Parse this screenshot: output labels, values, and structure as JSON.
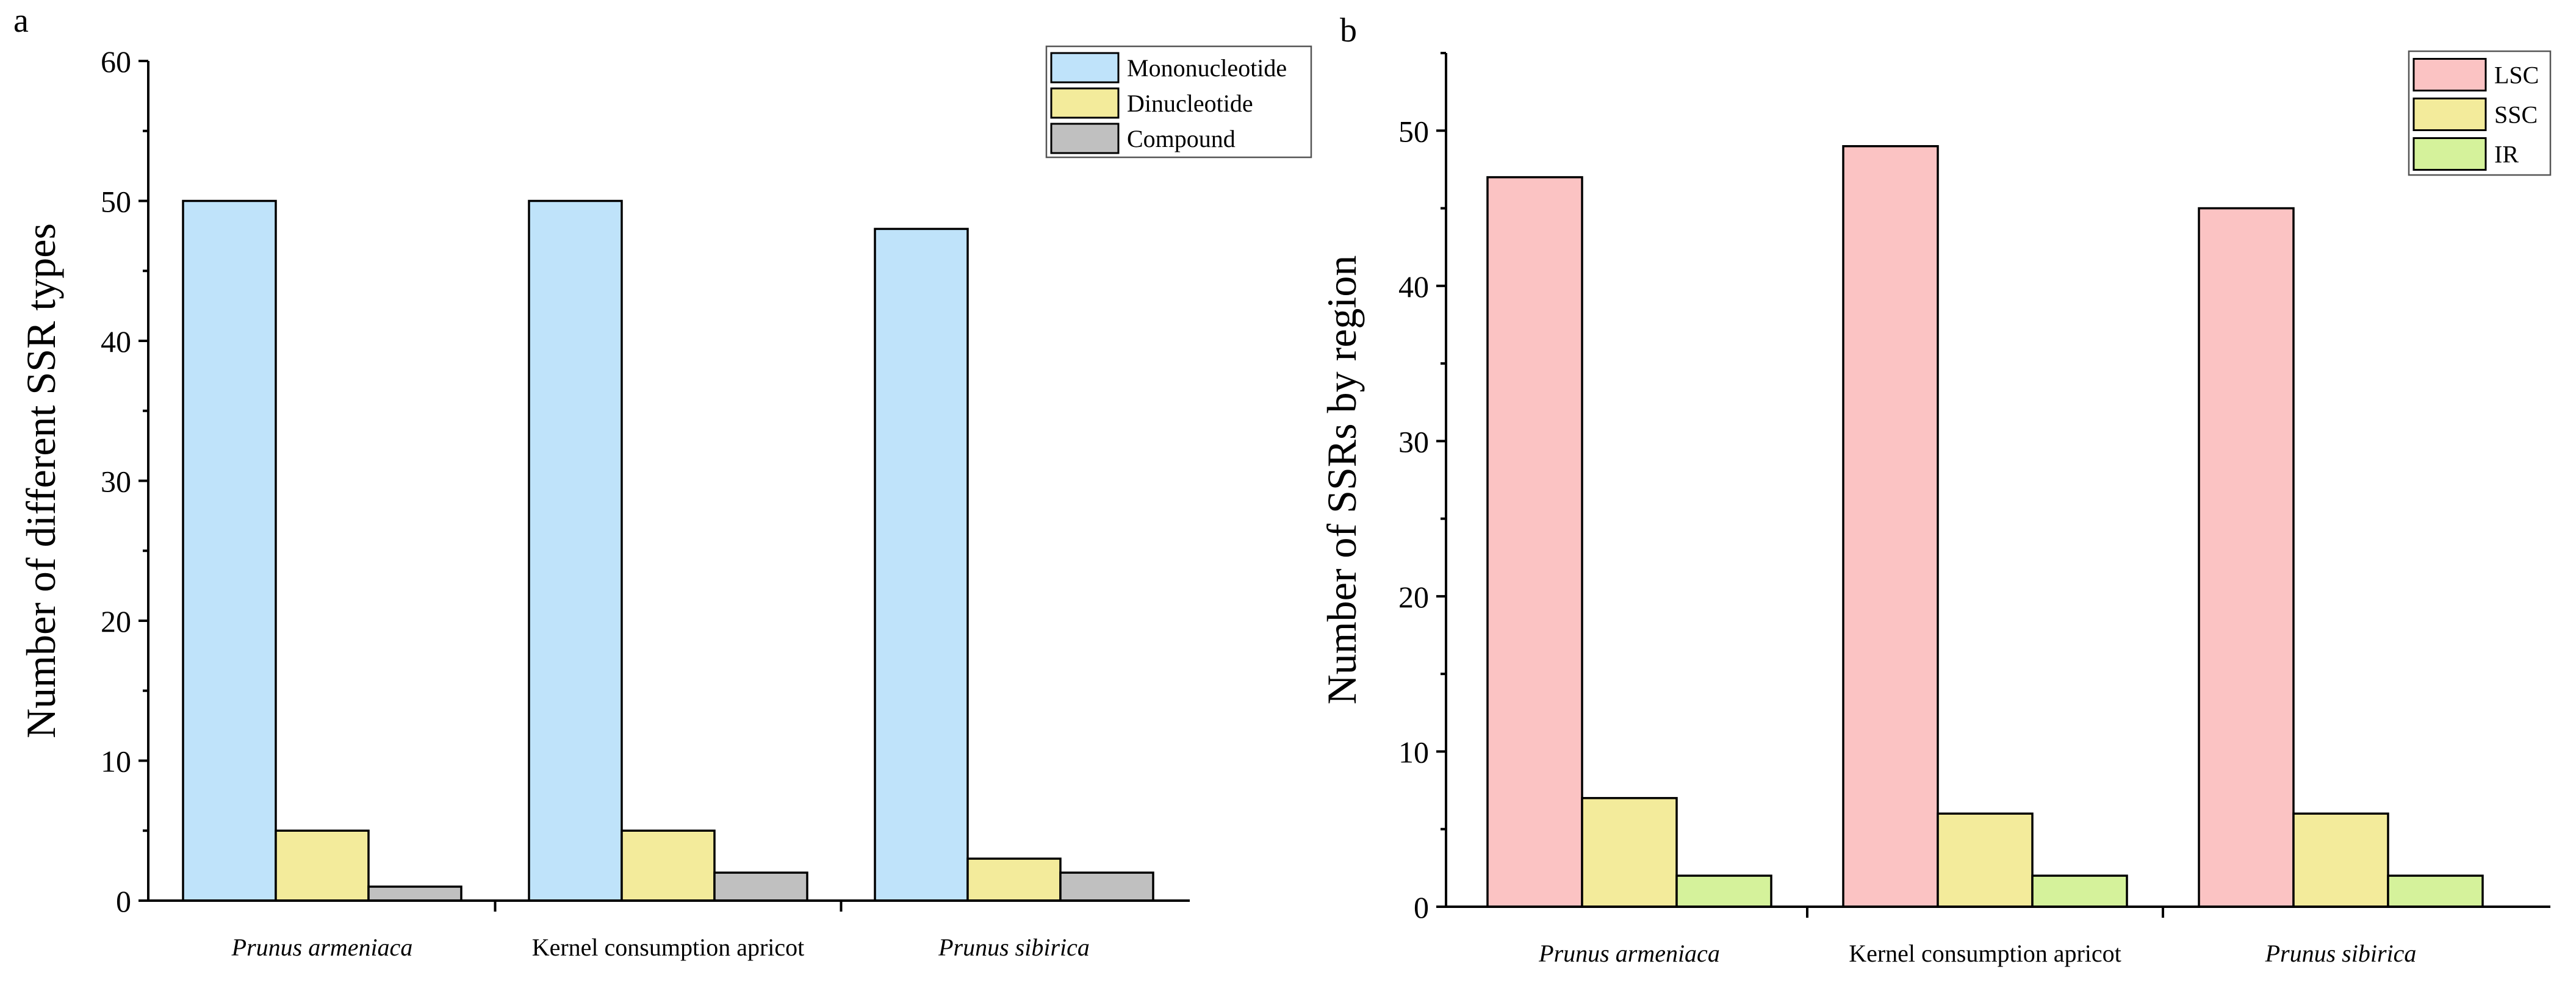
{
  "chart_data": [
    {
      "type": "bar",
      "panel_label": "a",
      "categories": [
        "Prunus armeniaca",
        "Kernel consumption apricot",
        "Prunus sibirica"
      ],
      "category_italic": [
        true,
        false,
        true
      ],
      "series": [
        {
          "name": "Mononucleotide",
          "color": "#bfe3fa",
          "values": [
            50,
            50,
            48
          ]
        },
        {
          "name": "Dinucleotide",
          "color": "#f3eb9b",
          "values": [
            5,
            5,
            3
          ]
        },
        {
          "name": "Compound",
          "color": "#c0c0c0",
          "values": [
            1,
            2,
            2
          ]
        }
      ],
      "ylabel": "Number of different SSR types",
      "xlabel": "",
      "ylim": [
        0,
        60
      ],
      "yticks": [
        0,
        10,
        20,
        30,
        40,
        50,
        60
      ],
      "legend_position": "top-right"
    },
    {
      "type": "bar",
      "panel_label": "b",
      "categories": [
        "Prunus armeniaca",
        "Kernel consumption apricot",
        "Prunus sibirica"
      ],
      "category_italic": [
        true,
        false,
        true
      ],
      "series": [
        {
          "name": "LSC",
          "color": "#fbc3c3",
          "values": [
            47,
            49,
            45
          ]
        },
        {
          "name": "SSC",
          "color": "#f3eb9b",
          "values": [
            7,
            6,
            6
          ]
        },
        {
          "name": "IR",
          "color": "#d5f29b",
          "values": [
            2,
            2,
            2
          ]
        }
      ],
      "ylabel": "Number of SSRs by region",
      "xlabel": "",
      "ylim": [
        0,
        55
      ],
      "yticks": [
        0,
        10,
        20,
        30,
        40,
        50
      ],
      "legend_position": "top-right"
    }
  ]
}
